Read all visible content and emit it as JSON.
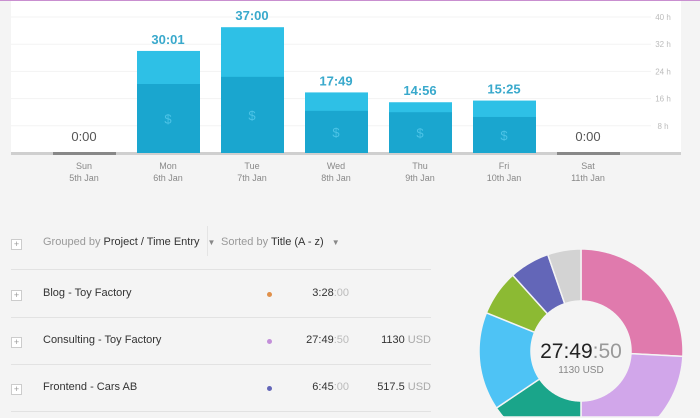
{
  "chart_data": {
    "type": "bar",
    "stacked": true,
    "categories": [
      {
        "day": "Sun",
        "date": "5th Jan"
      },
      {
        "day": "Mon",
        "date": "6th Jan"
      },
      {
        "day": "Tue",
        "date": "7th Jan"
      },
      {
        "day": "Wed",
        "date": "8th Jan"
      },
      {
        "day": "Thu",
        "date": "9th Jan"
      },
      {
        "day": "Fri",
        "date": "10th Jan"
      },
      {
        "day": "Sat",
        "date": "11th Jan"
      }
    ],
    "totals_label": [
      "0:00",
      "30:01",
      "37:00",
      "17:49",
      "14:56",
      "15:25",
      "0:00"
    ],
    "total_hours": [
      0,
      30.02,
      37.0,
      17.82,
      14.93,
      15.42,
      0
    ],
    "billable_hours": [
      0,
      20.3,
      22.4,
      12.4,
      12.0,
      10.6,
      0
    ],
    "billable_icon": "dollar-icon",
    "yticks": [
      "8 h",
      "16 h",
      "24 h",
      "32 h",
      "40 h"
    ],
    "ylim": [
      0,
      40
    ],
    "grid": true,
    "colors": {
      "total": "#2ec0e6",
      "billable": "#1aa6cf",
      "zero": "#888888"
    }
  },
  "controls": {
    "grouped_prefix": "Grouped by",
    "grouped_value": "Project / Time Entry",
    "sorted_prefix": "Sorted by",
    "sorted_value": "Title (A - z)"
  },
  "rows": [
    {
      "name": "Blog - Toy Factory",
      "color": "#e0904a",
      "time": "3:28",
      "seconds": ":00",
      "amount": "",
      "currency": ""
    },
    {
      "name": "Consulting - Toy Factory",
      "color": "#c38fd9",
      "time": "27:49",
      "seconds": ":50",
      "amount": "1130",
      "currency": " USD"
    },
    {
      "name": "Frontend - Cars AB",
      "color": "#6366b8",
      "time": "6:45",
      "seconds": ":00",
      "amount": "517.5",
      "currency": " USD"
    }
  ],
  "donut": {
    "center_time": "27:49",
    "center_seconds": ":50",
    "center_amount": "1130 USD",
    "segments_degrees": [
      {
        "color": "#e07aad",
        "deg": 93
      },
      {
        "color": "#d1a6ea",
        "deg": 87
      },
      {
        "color": "#1aa58a",
        "deg": 56
      },
      {
        "color": "#4ec3f5",
        "deg": 56
      },
      {
        "color": "#8cba33",
        "deg": 26
      },
      {
        "color": "#6366b8",
        "deg": 23
      },
      {
        "color": "#d3d3d3",
        "deg": 19
      }
    ]
  }
}
